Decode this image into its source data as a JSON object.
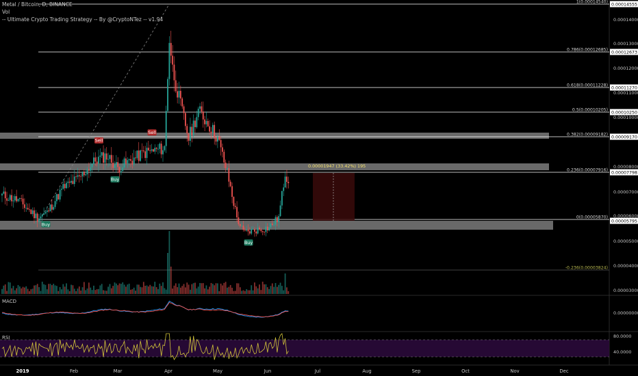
{
  "header": {
    "symbol_line": "Metal / Bitcoin, D, BINANCE",
    "vol_label": "Vol",
    "strategy_label": "-- Ultimate Crypto Trading Strategy -- By @CryptoNTez -- v1.94"
  },
  "panes": {
    "macd_label": "MACD",
    "rsi_label": "RSI"
  },
  "colors": {
    "up": "#26a69a",
    "down": "#ef5350",
    "fib": "#ffffff",
    "zone": "#8c8c8c",
    "macd": "#2196f3",
    "signal": "#ef5350",
    "rsi": "#d4c63a",
    "rsi_band": "#2a0a3a",
    "measure": "#f5e16a",
    "measure_box": "#3a0a0a"
  },
  "chart_data": {
    "type": "candlestick",
    "title": "Metal / Bitcoin, D, BINANCE",
    "x_ticks": [
      "2019",
      "Feb",
      "Mar",
      "Apr",
      "May",
      "Jun",
      "Jul",
      "Aug",
      "Sep",
      "Oct",
      "Nov",
      "Dec"
    ],
    "y_ticks": [
      "0.00014000",
      "0.00013000",
      "0.00012000",
      "0.00011000",
      "0.00010000",
      "0.00008000",
      "0.00007000",
      "0.00006000",
      "0.00005000",
      "0.00004000",
      "0.00003000"
    ],
    "ylim": [
      3e-05,
      0.000145
    ],
    "price_labels": [
      "0.00014555",
      "0.00012673",
      "0.00011270",
      "0.00010250",
      "0.00009170",
      "0.00007798",
      "0.00005795"
    ],
    "fib_levels": [
      {
        "label": "1(0.00014540)",
        "value": 0.0001454
      },
      {
        "label": "0.786(0.00012685)",
        "value": 0.00012685
      },
      {
        "label": "0.618(0.00011228)",
        "value": 0.00011228
      },
      {
        "label": "0.5(0.00010205)",
        "value": 0.00010205
      },
      {
        "label": "0.382(0.00009182)",
        "value": 9.182e-05
      },
      {
        "label": "0.236(0.00007916)",
        "value": 7.916e-05
      },
      {
        "label": "0(0.00005870)",
        "value": 5.87e-05
      },
      {
        "label": "-0.236(0.00003824)",
        "value": 3.824e-05
      }
    ],
    "signals": [
      {
        "label": "Sell",
        "type": "sell",
        "date_index": 93
      },
      {
        "label": "Sell",
        "type": "sell",
        "date_index": 60
      },
      {
        "label": "Buy",
        "type": "buy",
        "date_index": 70
      },
      {
        "label": "Buy",
        "type": "buy",
        "date_index": 27
      },
      {
        "label": "Buy",
        "type": "buy",
        "date_index": 153
      }
    ],
    "measurement": {
      "label": "0.00001947 (33.42%) 195"
    },
    "macd_tick": "0.00000000",
    "rsi_ticks": [
      "80.0000",
      "40.0000"
    ],
    "rsi_band": [
      40,
      70
    ]
  }
}
